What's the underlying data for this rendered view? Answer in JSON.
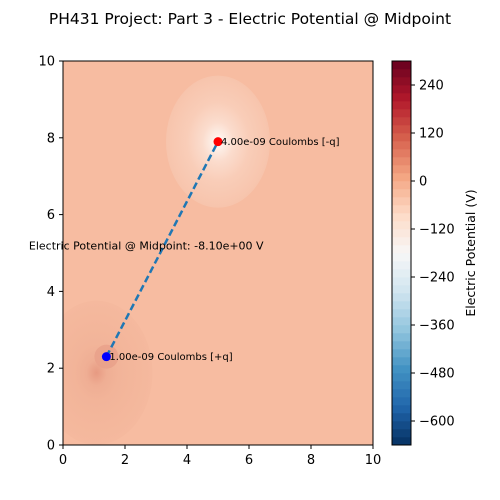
{
  "chart_data": {
    "type": "heatmap",
    "title": "PH431 Project: Part 3 - Electric Potential @ Midpoint",
    "xlabel": "",
    "ylabel": "",
    "xlim": [
      0,
      10
    ],
    "ylim": [
      0,
      10
    ],
    "x_ticks": [
      "0",
      "2",
      "4",
      "6",
      "8",
      "10"
    ],
    "y_ticks": [
      "0",
      "2",
      "4",
      "6",
      "8",
      "10"
    ],
    "colormap": "RdBu_r",
    "colorbar": {
      "label": "Electric Potential (V)",
      "range": [
        -660,
        300
      ],
      "ticks": [
        "240",
        "120",
        "0",
        "−120",
        "−240",
        "−360",
        "−480",
        "−600"
      ],
      "tick_values": [
        240,
        120,
        0,
        -120,
        -240,
        -360,
        -480,
        -600
      ]
    },
    "background_potential": 0,
    "charges": [
      {
        "x": 1.4,
        "y": 2.3,
        "label": "1.00e-09 Coulombs [+q]",
        "color": "#0000ff",
        "sign": "positive"
      },
      {
        "x": 5.0,
        "y": 7.9,
        "label": "4.00e-09 Coulombs [-q]",
        "color": "#ff0000",
        "sign": "negative"
      }
    ],
    "midpoint_line": {
      "x": [
        1.4,
        5.0
      ],
      "y": [
        2.3,
        7.9
      ],
      "color": "#1f77b4",
      "style": "dashed"
    },
    "midpoint_annotation": {
      "x": -1.1,
      "y": 5.2,
      "text": "Electric Potential @ Midpoint: -8.10e+00 V"
    }
  }
}
